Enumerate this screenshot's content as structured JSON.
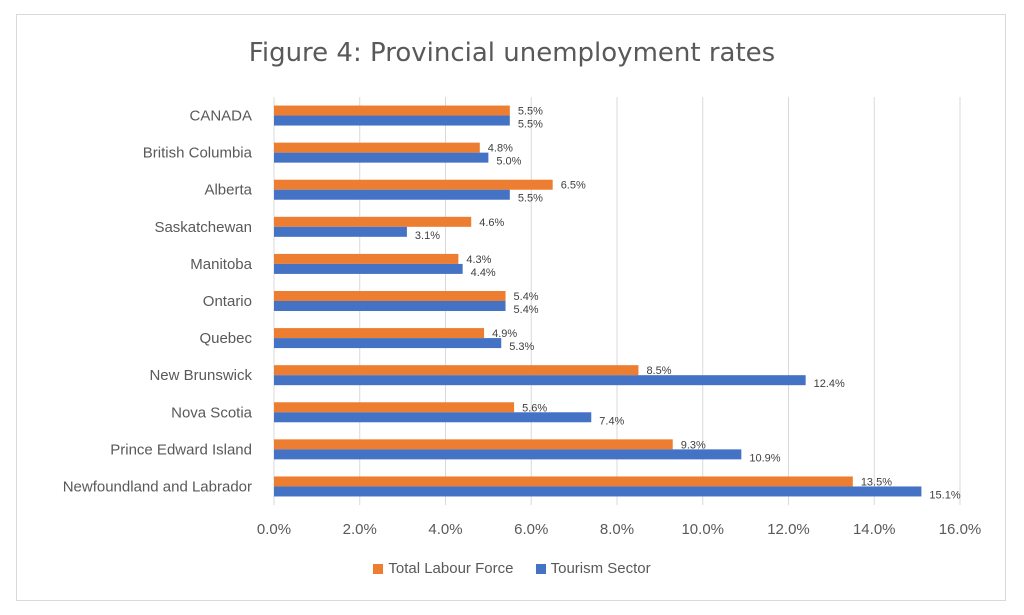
{
  "chart_data": {
    "type": "bar",
    "orientation": "horizontal",
    "title": "Figure 4: Provincial unemployment rates",
    "categories": [
      "CANADA",
      "British Columbia",
      "Alberta",
      "Saskatchewan",
      "Manitoba",
      "Ontario",
      "Quebec",
      "New Brunswick",
      "Nova Scotia",
      "Prince Edward Island",
      "Newfoundland and Labrador"
    ],
    "series": [
      {
        "name": "Total Labour Force",
        "color": "#ed7d31",
        "values": [
          5.5,
          4.8,
          6.5,
          4.6,
          4.3,
          5.4,
          4.9,
          8.5,
          5.6,
          9.3,
          13.5
        ],
        "labels": [
          "5.5%",
          "4.8%",
          "6.5%",
          "4.6%",
          "4.3%",
          "5.4%",
          "4.9%",
          "8.5%",
          "5.6%",
          "9.3%",
          "13.5%"
        ]
      },
      {
        "name": "Tourism Sector",
        "color": "#4472c4",
        "values": [
          5.5,
          5.0,
          5.5,
          3.1,
          4.4,
          5.4,
          5.3,
          12.4,
          7.4,
          10.9,
          15.1
        ],
        "labels": [
          "5.5%",
          "5.0%",
          "5.5%",
          "3.1%",
          "4.4%",
          "5.4%",
          "5.3%",
          "12.4%",
          "7.4%",
          "10.9%",
          "15.1%"
        ]
      }
    ],
    "xlim": [
      0,
      16
    ],
    "x_ticks": [
      "0.0%",
      "2.0%",
      "4.0%",
      "6.0%",
      "8.0%",
      "10.0%",
      "12.0%",
      "14.0%",
      "16.0%"
    ],
    "grid": "vertical",
    "legend_position": "bottom"
  }
}
